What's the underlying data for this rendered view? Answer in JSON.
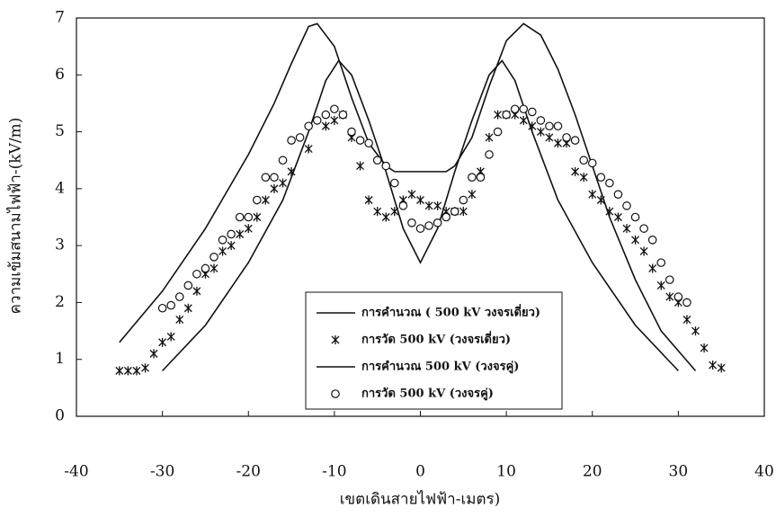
{
  "chart_data": {
    "type": "line",
    "x_label": "เขตเดินสายไฟฟ้า-เมตร)",
    "y_label": "ความเข้มสนามไฟฟ้า-(kV/m)",
    "xlim": [
      -40,
      40
    ],
    "xticks": [
      -40,
      -30,
      -20,
      -10,
      0,
      10,
      20,
      30,
      40
    ],
    "ylim": [
      0,
      7
    ],
    "yticks": [
      0,
      1,
      2,
      3,
      4,
      5,
      6,
      7
    ],
    "grid": false,
    "series": [
      {
        "name": "การคำนวณ ( 500 kV วงจรเดี่ยว)",
        "mark": "line",
        "color": "#111111",
        "x": [
          -35,
          -30,
          -25,
          -20,
          -17,
          -15,
          -13,
          -12,
          -10,
          -8,
          -6,
          -4,
          -3,
          0,
          3,
          4,
          6,
          8,
          10,
          12,
          14,
          16,
          18,
          20,
          22,
          25,
          28,
          32
        ],
        "values": [
          1.3,
          2.2,
          3.3,
          4.6,
          5.5,
          6.2,
          6.85,
          6.9,
          6.5,
          5.6,
          4.8,
          4.4,
          4.3,
          4.3,
          4.3,
          4.4,
          4.9,
          5.8,
          6.6,
          6.9,
          6.7,
          6.1,
          5.3,
          4.4,
          3.5,
          2.4,
          1.5,
          0.8
        ]
      },
      {
        "name": "การวัด 500 kV (วงจรเดี่ยว)",
        "mark": "x",
        "color": "#111111",
        "x": [
          -35,
          -34,
          -33,
          -32,
          -31,
          -30,
          -29,
          -28,
          -27,
          -26,
          -25,
          -24,
          -23,
          -22,
          -21,
          -20,
          -19,
          -18,
          -17,
          -16,
          -15,
          -13,
          -11,
          -10,
          -9,
          -8,
          -7,
          -6,
          -5,
          -4,
          -3,
          -2,
          -1,
          0,
          1,
          2,
          3,
          4,
          5,
          6,
          7,
          8,
          9,
          10,
          11,
          12,
          13,
          14,
          15,
          16,
          17,
          18,
          19,
          20,
          21,
          22,
          23,
          24,
          25,
          26,
          27,
          28,
          29,
          30,
          31,
          32,
          33,
          34,
          35
        ],
        "values": [
          0.8,
          0.8,
          0.8,
          0.85,
          1.1,
          1.3,
          1.4,
          1.7,
          1.9,
          2.2,
          2.5,
          2.6,
          2.9,
          3.0,
          3.2,
          3.3,
          3.5,
          3.8,
          4.0,
          4.1,
          4.3,
          4.7,
          5.1,
          5.2,
          5.3,
          4.9,
          4.4,
          3.8,
          3.6,
          3.5,
          3.6,
          3.8,
          3.9,
          3.8,
          3.7,
          3.7,
          3.6,
          3.6,
          3.6,
          3.9,
          4.3,
          4.9,
          5.3,
          5.3,
          5.3,
          5.2,
          5.1,
          5.0,
          4.9,
          4.8,
          4.8,
          4.3,
          4.2,
          3.9,
          3.8,
          3.6,
          3.5,
          3.3,
          3.1,
          2.9,
          2.6,
          2.3,
          2.1,
          2.0,
          1.7,
          1.5,
          1.2,
          0.9,
          0.85
        ]
      },
      {
        "name": "การคำนวณ 500 kV (วงจรคู่)",
        "mark": "line",
        "color": "#111111",
        "x": [
          -30,
          -25,
          -20,
          -16,
          -13,
          -11,
          -9.5,
          -8,
          -6,
          -4,
          -2,
          0,
          2,
          4,
          6,
          8,
          9.5,
          11,
          13,
          16,
          20,
          25,
          30
        ],
        "values": [
          0.8,
          1.6,
          2.7,
          3.8,
          5.0,
          5.9,
          6.25,
          6.0,
          5.2,
          4.3,
          3.3,
          2.7,
          3.3,
          4.3,
          5.2,
          6.0,
          6.25,
          5.9,
          5.0,
          3.8,
          2.7,
          1.6,
          0.8
        ]
      },
      {
        "name": "การวัด 500 kV (วงจรคู่)",
        "mark": "circle",
        "color": "#111111",
        "x": [
          -30,
          -29,
          -28,
          -27,
          -26,
          -25,
          -24,
          -23,
          -22,
          -21,
          -20,
          -19,
          -18,
          -17,
          -16,
          -15,
          -14,
          -13,
          -12,
          -11,
          -10,
          -9,
          -8,
          -7,
          -6,
          -5,
          -4,
          -3,
          -2,
          -1,
          0,
          1,
          2,
          3,
          4,
          5,
          6,
          7,
          8,
          9,
          10,
          11,
          12,
          13,
          14,
          15,
          16,
          17,
          18,
          19,
          20,
          21,
          22,
          23,
          24,
          25,
          26,
          27,
          28,
          29,
          30,
          31
        ],
        "values": [
          1.9,
          1.95,
          2.1,
          2.3,
          2.5,
          2.6,
          2.8,
          3.1,
          3.2,
          3.5,
          3.5,
          3.8,
          4.2,
          4.2,
          4.5,
          4.85,
          4.9,
          5.1,
          5.2,
          5.3,
          5.4,
          5.3,
          5.0,
          4.85,
          4.8,
          4.5,
          4.4,
          4.1,
          3.7,
          3.4,
          3.3,
          3.35,
          3.4,
          3.5,
          3.6,
          3.8,
          4.2,
          4.2,
          4.6,
          5.0,
          5.3,
          5.4,
          5.4,
          5.35,
          5.2,
          5.1,
          5.1,
          4.9,
          4.85,
          4.5,
          4.45,
          4.2,
          4.1,
          3.9,
          3.7,
          3.5,
          3.3,
          3.1,
          2.7,
          2.4,
          2.1,
          2.0
        ]
      }
    ]
  }
}
